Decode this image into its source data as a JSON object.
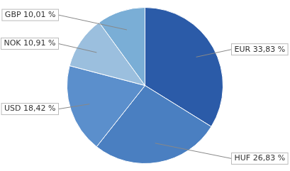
{
  "chart_data": {
    "type": "pie",
    "categories": [
      "EUR 33,83 %",
      "HUF 26,83 %",
      "USD 18,42 %",
      "NOK 10,91 %",
      "GBP 10,01 %"
    ],
    "values": [
      33.83,
      26.83,
      18.42,
      10.91,
      10.01
    ],
    "colors": [
      "#2b5ba8",
      "#4a7fc1",
      "#5b8fcc",
      "#9bbfde",
      "#7aaed6"
    ],
    "legend": false
  }
}
